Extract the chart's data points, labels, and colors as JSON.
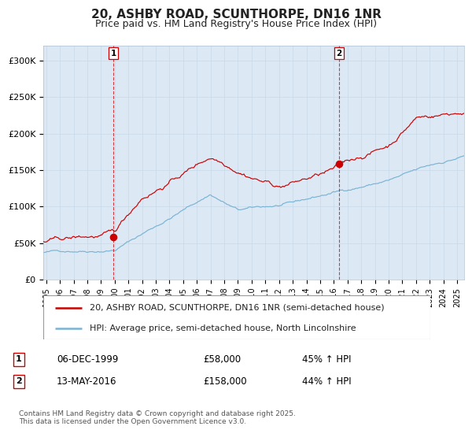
{
  "title_line1": "20, ASHBY ROAD, SCUNTHORPE, DN16 1NR",
  "title_line2": "Price paid vs. HM Land Registry's House Price Index (HPI)",
  "hpi_color": "#7ab3d4",
  "price_color": "#cc0000",
  "bg_color": "#dce9f5",
  "plot_bg": "#ffffff",
  "ylim": [
    0,
    320000
  ],
  "yticks": [
    0,
    50000,
    100000,
    150000,
    200000,
    250000,
    300000
  ],
  "ytick_labels": [
    "£0",
    "£50K",
    "£100K",
    "£150K",
    "£200K",
    "£250K",
    "£300K"
  ],
  "purchase1_date_num": 1999.92,
  "purchase1_price": 58000,
  "purchase2_date_num": 2016.36,
  "purchase2_price": 158000,
  "legend_line1": "20, ASHBY ROAD, SCUNTHORPE, DN16 1NR (semi-detached house)",
  "legend_line2": "HPI: Average price, semi-detached house, North Lincolnshire",
  "annotation1_date": "06-DEC-1999",
  "annotation1_price": "£58,000",
  "annotation1_hpi": "45% ↑ HPI",
  "annotation2_date": "13-MAY-2016",
  "annotation2_price": "£158,000",
  "annotation2_hpi": "44% ↑ HPI",
  "footer": "Contains HM Land Registry data © Crown copyright and database right 2025.\nThis data is licensed under the Open Government Licence v3.0.",
  "xmin": 1994.8,
  "xmax": 2025.5
}
